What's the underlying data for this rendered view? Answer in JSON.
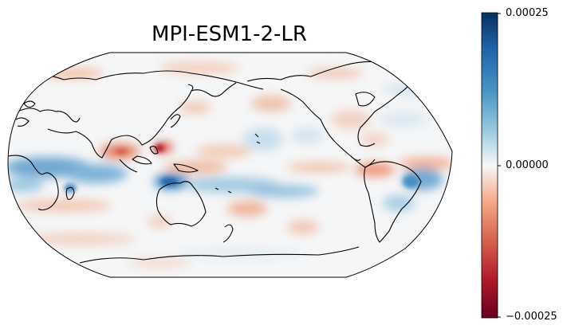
{
  "title": "MPI-ESM1-2-LR",
  "colorbar": {
    "colormap": "RdBu",
    "max_label": "0.00025",
    "mid_label": "0.00000",
    "min_label": "−0.00025",
    "range": [
      -0.00025,
      0.00025
    ],
    "colors": {
      "deep_blue": "#053061",
      "blue": "#2166ac",
      "light_blue": "#92c5de",
      "white": "#f7f7f7",
      "light_red": "#f4a582",
      "red": "#b2182b",
      "deep_red": "#67001f"
    }
  },
  "map": {
    "projection": "Robinson",
    "central_longitude": 180,
    "coastlines": true,
    "field": "anomaly"
  }
}
